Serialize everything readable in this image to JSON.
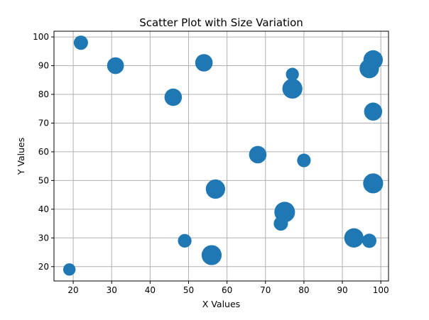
{
  "chart_data": {
    "type": "scatter",
    "title": "Scatter Plot with Size Variation",
    "xlabel": "X Values",
    "ylabel": "Y Values",
    "xlim": [
      15,
      102
    ],
    "ylim": [
      15,
      102
    ],
    "xticks": [
      20,
      30,
      40,
      50,
      60,
      70,
      80,
      90,
      100
    ],
    "yticks": [
      20,
      30,
      40,
      50,
      60,
      70,
      80,
      90,
      100
    ],
    "grid": true,
    "marker_color": "#1f77b4",
    "points": [
      {
        "x": 22,
        "y": 98,
        "size": 0.45
      },
      {
        "x": 31,
        "y": 90,
        "size": 0.65
      },
      {
        "x": 46,
        "y": 79,
        "size": 0.7
      },
      {
        "x": 54,
        "y": 91,
        "size": 0.7
      },
      {
        "x": 77,
        "y": 87,
        "size": 0.35
      },
      {
        "x": 77,
        "y": 82,
        "size": 0.9
      },
      {
        "x": 97,
        "y": 89,
        "size": 0.85
      },
      {
        "x": 98,
        "y": 92,
        "size": 0.85
      },
      {
        "x": 98,
        "y": 74,
        "size": 0.75
      },
      {
        "x": 68,
        "y": 59,
        "size": 0.7
      },
      {
        "x": 80,
        "y": 57,
        "size": 0.4
      },
      {
        "x": 57,
        "y": 47,
        "size": 0.85
      },
      {
        "x": 98,
        "y": 49,
        "size": 0.9
      },
      {
        "x": 75,
        "y": 39,
        "size": 0.95
      },
      {
        "x": 74,
        "y": 35,
        "size": 0.45
      },
      {
        "x": 93,
        "y": 30,
        "size": 0.85
      },
      {
        "x": 97,
        "y": 29,
        "size": 0.45
      },
      {
        "x": 49,
        "y": 29,
        "size": 0.4
      },
      {
        "x": 56,
        "y": 24,
        "size": 0.9
      },
      {
        "x": 19,
        "y": 19,
        "size": 0.3
      }
    ]
  }
}
